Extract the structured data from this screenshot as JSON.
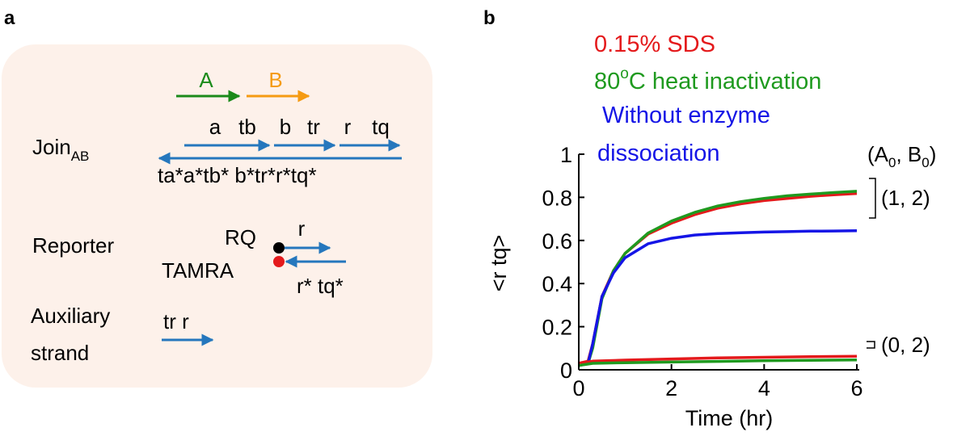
{
  "panel_a": {
    "label": "a",
    "arrow_a": "A",
    "arrow_b": "B",
    "join": {
      "name": "Join",
      "subscript": "AB",
      "top_labels": [
        "a",
        "tb",
        "b",
        "tr",
        "r",
        "tq"
      ],
      "bottom_label": "ta*a*tb* b*tr*r*tq*"
    },
    "reporter": {
      "name": "Reporter",
      "quencher": "RQ",
      "fluor": "TAMRA",
      "top_domain": "r",
      "bottom_label": "r* tq*"
    },
    "auxiliary": {
      "line1": "Auxiliary",
      "line2": "strand",
      "domain_label": "tr r"
    }
  },
  "panel_b": {
    "label": "b",
    "legend": [
      {
        "text": "0.15% SDS",
        "color": "#e41a1c"
      },
      {
        "text_pre": "80",
        "sup": "o",
        "text_post": "C heat inactivation",
        "color": "#1f9a1f"
      },
      {
        "text": "Without enzyme",
        "color": "#1515e6"
      },
      {
        "text": "dissociation",
        "color": "#1515e6"
      }
    ],
    "bracket_labels": {
      "header_pre": "(A",
      "sub_a": "0",
      "header_mid": ", B",
      "sub_b": "0",
      "header_post": ")",
      "upper": "(1, 2)",
      "lower": "(0, 2)"
    }
  },
  "colors": {
    "orange_bg": "#fdf1ea",
    "strand_blue": "#2577bd",
    "green_arrow": "#1a8a1a",
    "orange_arrow": "#f59b12",
    "red": "#e41a1c",
    "green": "#1f9a1f",
    "blue": "#1515e6"
  },
  "chart_data": {
    "type": "line",
    "title": "",
    "xlabel": "Time (hr)",
    "ylabel": "<r tq>",
    "xlim": [
      0,
      6
    ],
    "ylim": [
      0,
      1
    ],
    "xticks": [
      0,
      2,
      4,
      6
    ],
    "yticks": [
      0,
      0.2,
      0.4,
      0.6,
      0.8,
      1
    ],
    "ytick_labels": [
      "0",
      "0.2",
      "0.4",
      "0.6",
      "0.8",
      "1"
    ],
    "series": [
      {
        "name": "0.15% SDS (1, 2)",
        "color": "#e41a1c",
        "x": [
          0,
          0.2,
          0.3,
          0.5,
          0.75,
          1,
          1.5,
          2,
          2.5,
          3,
          3.5,
          4,
          4.5,
          5,
          5.5,
          6
        ],
        "y": [
          0.03,
          0.04,
          0.12,
          0.34,
          0.46,
          0.54,
          0.63,
          0.68,
          0.72,
          0.75,
          0.77,
          0.785,
          0.795,
          0.805,
          0.812,
          0.818
        ]
      },
      {
        "name": "80°C heat inactivation (1, 2)",
        "color": "#1f9a1f",
        "x": [
          0,
          0.2,
          0.3,
          0.5,
          0.75,
          1,
          1.5,
          2,
          2.5,
          3,
          3.5,
          4,
          4.5,
          5,
          5.5,
          6
        ],
        "y": [
          0.02,
          0.03,
          0.1,
          0.33,
          0.46,
          0.54,
          0.635,
          0.69,
          0.73,
          0.76,
          0.78,
          0.795,
          0.807,
          0.815,
          0.822,
          0.828
        ]
      },
      {
        "name": "Without enzyme dissociation (1, 2)",
        "color": "#1515e6",
        "x": [
          0,
          0.2,
          0.3,
          0.5,
          0.75,
          1,
          1.5,
          2,
          2.5,
          3,
          3.5,
          4,
          4.5,
          5,
          5.5,
          6
        ],
        "y": [
          0.02,
          0.03,
          0.12,
          0.34,
          0.45,
          0.52,
          0.585,
          0.61,
          0.625,
          0.632,
          0.636,
          0.639,
          0.641,
          0.643,
          0.644,
          0.645
        ]
      },
      {
        "name": "0.15% SDS (0, 2)",
        "color": "#e41a1c",
        "x": [
          0,
          0.3,
          1,
          2,
          3,
          4,
          5,
          6
        ],
        "y": [
          0.03,
          0.04,
          0.045,
          0.05,
          0.055,
          0.058,
          0.061,
          0.063
        ]
      },
      {
        "name": "80°C heat inactivation (0, 2)",
        "color": "#1f9a1f",
        "x": [
          0,
          0.3,
          1,
          2,
          3,
          4,
          5,
          6
        ],
        "y": [
          0.02,
          0.03,
          0.033,
          0.036,
          0.039,
          0.042,
          0.044,
          0.046
        ]
      }
    ]
  }
}
